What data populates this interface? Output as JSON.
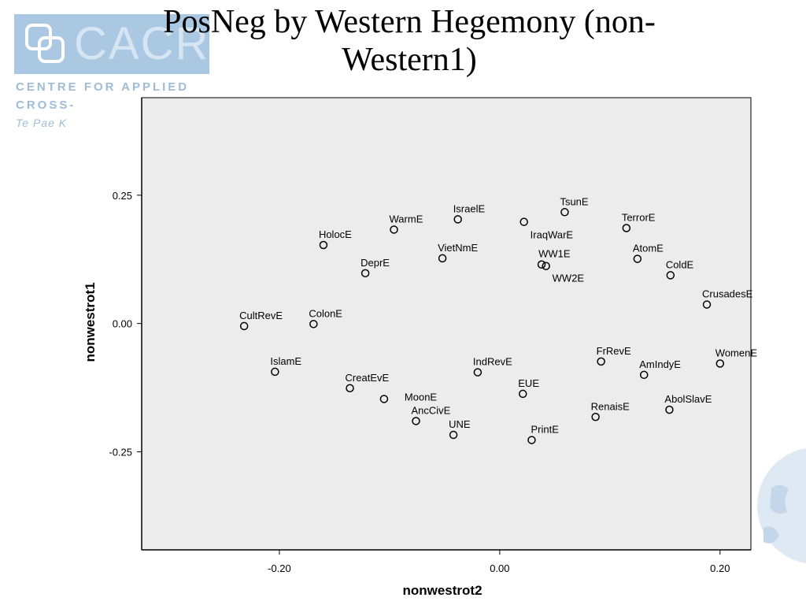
{
  "logo": {
    "word": "CACR",
    "line1": "CENTRE FOR APPLIED",
    "line2": "CROSS-",
    "line3": "Te Pae K"
  },
  "colors": {
    "plot_background": "#ececec",
    "marker": "#000000",
    "logo_blue": "#aac8e2"
  },
  "icons": {
    "logo": "cacr-logo-mark",
    "watermark": "globe-watermark"
  },
  "chart_data": {
    "type": "scatter",
    "title": "PosNeg by Western Hegemony (non-Western1)",
    "xlabel": "nonwestrot2",
    "ylabel": "nonwestrot1",
    "xlim": [
      -0.325,
      0.228
    ],
    "ylim": [
      -0.441,
      0.44
    ],
    "xticks": [
      -0.2,
      0.0,
      0.2
    ],
    "xtick_labels": [
      "-0.20",
      "0.00",
      "0.20"
    ],
    "yticks": [
      -0.25,
      0.0,
      0.25
    ],
    "ytick_labels": [
      "-0.25",
      "0.00",
      "0.25"
    ],
    "grid": false,
    "legend": "none",
    "points": [
      {
        "label": "TsunE",
        "x": 0.059,
        "y": 0.217
      },
      {
        "label": "IsraelE",
        "x": -0.038,
        "y": 0.203
      },
      {
        "label": "WarmE",
        "x": -0.096,
        "y": 0.183
      },
      {
        "label": "TerrorE",
        "x": 0.115,
        "y": 0.186
      },
      {
        "label": "IraqWarE",
        "x": 0.022,
        "y": 0.198
      },
      {
        "label": "HolocE",
        "x": -0.16,
        "y": 0.153
      },
      {
        "label": "VietNmE",
        "x": -0.052,
        "y": 0.127
      },
      {
        "label": "AtomE",
        "x": 0.125,
        "y": 0.126
      },
      {
        "label": "WW1E",
        "x": 0.038,
        "y": 0.115
      },
      {
        "label": "WW2E",
        "x": 0.042,
        "y": 0.112
      },
      {
        "label": "DeprE",
        "x": -0.122,
        "y": 0.098
      },
      {
        "label": "ColdE",
        "x": 0.155,
        "y": 0.094
      },
      {
        "label": "CrusadesE",
        "x": 0.188,
        "y": 0.037
      },
      {
        "label": "CultRevE",
        "x": -0.232,
        "y": -0.005
      },
      {
        "label": "ColonE",
        "x": -0.169,
        "y": -0.001
      },
      {
        "label": "IslamE",
        "x": -0.204,
        "y": -0.094
      },
      {
        "label": "FrRevE",
        "x": 0.092,
        "y": -0.074
      },
      {
        "label": "WomenE",
        "x": 0.2,
        "y": -0.078
      },
      {
        "label": "IndRevE",
        "x": -0.02,
        "y": -0.095
      },
      {
        "label": "AmIndyE",
        "x": 0.131,
        "y": -0.1
      },
      {
        "label": "CreatEvE",
        "x": -0.136,
        "y": -0.126
      },
      {
        "label": "EUE",
        "x": 0.021,
        "y": -0.137
      },
      {
        "label": "MoonE",
        "x": -0.105,
        "y": -0.147
      },
      {
        "label": "AbolSlavE",
        "x": 0.154,
        "y": -0.168
      },
      {
        "label": "RenaisE",
        "x": 0.087,
        "y": -0.182
      },
      {
        "label": "AncCivE",
        "x": -0.076,
        "y": -0.19
      },
      {
        "label": "UNE",
        "x": -0.042,
        "y": -0.217
      },
      {
        "label": "PrintE",
        "x": 0.029,
        "y": -0.227
      }
    ]
  }
}
